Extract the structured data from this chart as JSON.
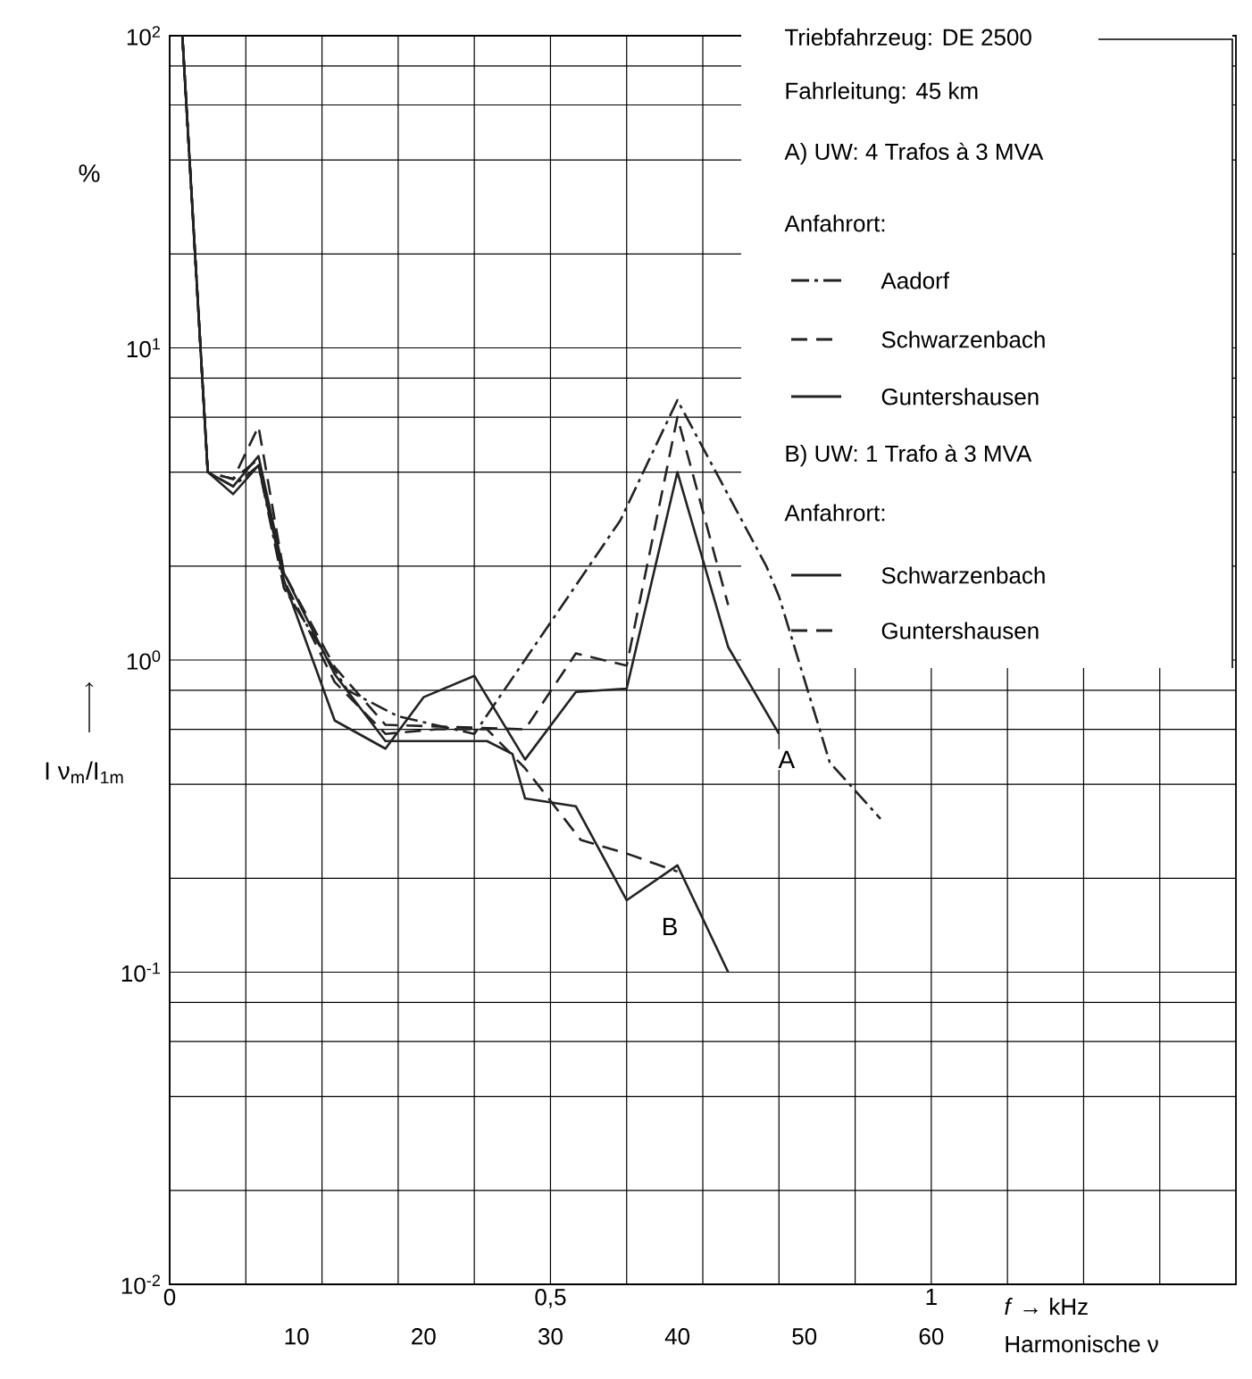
{
  "chart_data": {
    "type": "line",
    "xlabel": "Harmonische ν",
    "x2label": "*f* → kHz",
    "ylabel": "I ν$_{m}$/I$_{1m}$",
    "xlim": [
      0,
      84
    ],
    "xticks": [
      10,
      20,
      30,
      40,
      50,
      60
    ],
    "x2lim": [
      0,
      1.4
    ],
    "x2ticks": [
      0,
      {
        "value": 0.1,
        "label": null
      },
      {
        "value": 0.2,
        "label": null
      },
      {
        "value": 0.3,
        "label": null
      },
      {
        "value": 0.4,
        "label": null
      },
      {
        "value": 0.5,
        "label": "0,5"
      },
      {
        "value": 0.6,
        "label": null
      },
      {
        "value": 0.7,
        "label": null
      },
      {
        "value": 0.8,
        "label": null
      },
      {
        "value": 0.9,
        "label": null
      },
      1,
      {
        "value": 1.1,
        "label": null
      },
      {
        "value": 1.2,
        "label": null
      },
      {
        "value": 1.3,
        "label": null
      }
    ],
    "ylim": [
      0.01,
      100
    ],
    "yticks": [
      {
        "value": 0.01,
        "label": "10$^{-2}$"
      },
      {
        "value": 0.02,
        "label": null
      },
      {
        "value": 0.04,
        "label": null
      },
      {
        "value": 0.06,
        "label": null
      },
      {
        "value": 0.08,
        "label": null
      },
      {
        "value": 0.1,
        "label": "10$^{-1}$"
      },
      {
        "value": 0.2,
        "label": null
      },
      {
        "value": 0.4,
        "label": null
      },
      {
        "value": 0.6,
        "label": null
      },
      {
        "value": 0.8,
        "label": null
      },
      {
        "value": 1,
        "label": "10$^{0}$"
      },
      {
        "value": 2,
        "label": null
      },
      {
        "value": 4,
        "label": null
      },
      {
        "value": 6,
        "label": null
      },
      {
        "value": 8,
        "label": null
      },
      {
        "value": 10,
        "label": "10$^{1}$"
      },
      {
        "value": 20,
        "label": null
      },
      {
        "value": 40,
        "label": null
      },
      {
        "value": 60,
        "label": null
      },
      {
        "value": 80,
        "label": null
      },
      {
        "value": 100,
        "label": "10$^{2}$"
      }
    ],
    "log": "y",
    "grid": true,
    "legend": "top right",
    "marker": "none",
    "series": [
      {
        "name": "Aadorf",
        "color": "#222222",
        "line_style": "dashdot",
        "x": [
          1,
          3,
          5,
          7,
          9,
          14,
          18,
          24,
          35.5,
          40,
          47,
          48,
          52,
          56
        ],
        "values": [
          100,
          4.0,
          3.6,
          4.2,
          1.7,
          0.8,
          0.66,
          0.58,
          2.8,
          6.8,
          2.0,
          1.6,
          0.47,
          0.31
        ]
      },
      {
        "name": "Schwarzenbach",
        "color": "#222222",
        "line_style": "dashed",
        "x": [
          1,
          3,
          5,
          7,
          9,
          13,
          17,
          28,
          32,
          36,
          40,
          44
        ],
        "values": [
          100,
          4.0,
          3.8,
          5.6,
          1.9,
          0.95,
          0.62,
          0.6,
          1.05,
          0.96,
          6.0,
          1.5
        ]
      },
      {
        "name": "Guntershausen",
        "color": "#222222",
        "line_style": "solid",
        "x": [
          1,
          3,
          5,
          7,
          9,
          13,
          17,
          20,
          24,
          28,
          32,
          36,
          40,
          44,
          48
        ],
        "values": [
          100,
          4.0,
          3.4,
          4.2,
          1.8,
          0.64,
          0.52,
          0.76,
          0.89,
          0.48,
          0.79,
          0.81,
          4.0,
          1.1,
          0.58
        ]
      },
      {
        "name": "Schwarzenbach",
        "color": "#222222",
        "line_style": "solid",
        "x": [
          1,
          3,
          5,
          7,
          9,
          13,
          17,
          21,
          25,
          27,
          28,
          32,
          36,
          40,
          44
        ],
        "values": [
          100,
          4.0,
          3.6,
          4.5,
          1.9,
          0.9,
          0.55,
          0.55,
          0.55,
          0.5,
          0.36,
          0.34,
          0.17,
          0.22,
          0.1
        ]
      },
      {
        "name": "Guntershausen",
        "color": "#222222",
        "line_style": "dashed",
        "x": [
          1,
          3,
          5,
          7,
          9,
          13,
          17,
          21,
          25,
          28,
          32.4,
          36,
          40
        ],
        "values": [
          100,
          4.0,
          3.8,
          4.4,
          1.8,
          0.85,
          0.58,
          0.6,
          0.6,
          0.45,
          0.265,
          0.24,
          0.21
        ]
      }
    ],
    "annotations": [
      "Triebfahrzeug: DE 2500",
      "Fahrleitung:  45 km",
      "A) UW: 4 Trafos à 3 MVA",
      "Anfahrort:",
      "B) UW: 1 Trafo à 3 MVA",
      "Anfahrort:",
      "%",
      {
        "text": "A",
        "x": 48.6,
        "y": 0.48
      },
      {
        "text": "B",
        "x": 39.4,
        "y": 0.14
      }
    ]
  }
}
